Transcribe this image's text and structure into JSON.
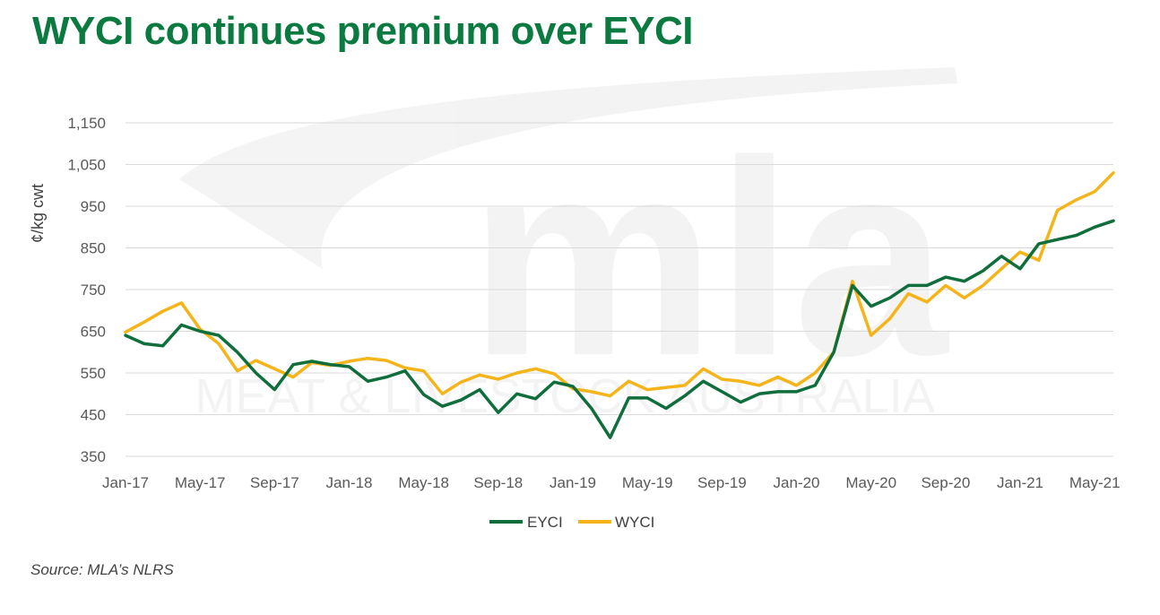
{
  "header": {
    "title": "WYCI continues premium over EYCI"
  },
  "footer": {
    "source": "Source: MLA’s NLRS"
  },
  "watermark": {
    "logo": "mla",
    "text": "MEAT & LIVESTOCK AUSTRALIA"
  },
  "colors": {
    "title": "#0b7a40",
    "eyci": "#0f6e3b",
    "wyci": "#f4b41a",
    "grid": "#d9d9d9"
  },
  "chart_data": {
    "type": "line",
    "title": "WYCI continues premium over EYCI",
    "xlabel": "",
    "ylabel": "¢/kg cwt",
    "ylim": [
      350,
      1150
    ],
    "yticks": [
      350,
      450,
      550,
      650,
      750,
      850,
      950,
      1050,
      1150
    ],
    "ytick_labels": [
      "350",
      "450",
      "550",
      "650",
      "750",
      "850",
      "950",
      "1,050",
      "1,150"
    ],
    "xlim": [
      "2017-01",
      "2021-06"
    ],
    "xticks": [
      "2017-01",
      "2017-05",
      "2017-09",
      "2018-01",
      "2018-05",
      "2018-09",
      "2019-01",
      "2019-05",
      "2019-09",
      "2020-01",
      "2020-05",
      "2020-09",
      "2021-01",
      "2021-05"
    ],
    "xtick_labels": [
      "Jan-17",
      "May-17",
      "Sep-17",
      "Jan-18",
      "May-18",
      "Sep-18",
      "Jan-19",
      "May-19",
      "Sep-19",
      "Jan-20",
      "May-20",
      "Sep-20",
      "Jan-21",
      "May-21"
    ],
    "grid": "horizontal",
    "legend": "bottom-center",
    "series": [
      {
        "name": "EYCI",
        "x": [
          "2017-01",
          "2017-02",
          "2017-03",
          "2017-04",
          "2017-05",
          "2017-06",
          "2017-07",
          "2017-08",
          "2017-09",
          "2017-10",
          "2017-11",
          "2017-12",
          "2018-01",
          "2018-02",
          "2018-03",
          "2018-04",
          "2018-05",
          "2018-06",
          "2018-07",
          "2018-08",
          "2018-09",
          "2018-10",
          "2018-11",
          "2018-12",
          "2019-01",
          "2019-02",
          "2019-03",
          "2019-04",
          "2019-05",
          "2019-06",
          "2019-07",
          "2019-08",
          "2019-09",
          "2019-10",
          "2019-11",
          "2019-12",
          "2020-01",
          "2020-02",
          "2020-03",
          "2020-04",
          "2020-05",
          "2020-06",
          "2020-07",
          "2020-08",
          "2020-09",
          "2020-10",
          "2020-11",
          "2020-12",
          "2021-01",
          "2021-02",
          "2021-03",
          "2021-04",
          "2021-05",
          "2021-06"
        ],
        "values": [
          640,
          620,
          615,
          665,
          650,
          640,
          600,
          550,
          510,
          570,
          578,
          570,
          565,
          530,
          540,
          555,
          498,
          470,
          485,
          510,
          455,
          500,
          488,
          528,
          518,
          465,
          395,
          490,
          490,
          465,
          495,
          530,
          505,
          480,
          500,
          505,
          505,
          520,
          600,
          760,
          710,
          730,
          760,
          760,
          780,
          770,
          795,
          830,
          800,
          860,
          870,
          880,
          900,
          915
        ]
      },
      {
        "name": "WYCI",
        "x": [
          "2017-01",
          "2017-02",
          "2017-03",
          "2017-04",
          "2017-05",
          "2017-06",
          "2017-07",
          "2017-08",
          "2017-09",
          "2017-10",
          "2017-11",
          "2017-12",
          "2018-01",
          "2018-02",
          "2018-03",
          "2018-04",
          "2018-05",
          "2018-06",
          "2018-07",
          "2018-08",
          "2018-09",
          "2018-10",
          "2018-11",
          "2018-12",
          "2019-01",
          "2019-02",
          "2019-03",
          "2019-04",
          "2019-05",
          "2019-06",
          "2019-07",
          "2019-08",
          "2019-09",
          "2019-10",
          "2019-11",
          "2019-12",
          "2020-01",
          "2020-02",
          "2020-03",
          "2020-04",
          "2020-05",
          "2020-06",
          "2020-07",
          "2020-08",
          "2020-09",
          "2020-10",
          "2020-11",
          "2020-12",
          "2021-01",
          "2021-02",
          "2021-03",
          "2021-04",
          "2021-05",
          "2021-06"
        ],
        "values": [
          648,
          672,
          698,
          718,
          655,
          620,
          555,
          580,
          560,
          540,
          575,
          568,
          578,
          585,
          580,
          562,
          555,
          500,
          528,
          545,
          535,
          550,
          560,
          548,
          512,
          505,
          495,
          530,
          510,
          515,
          520,
          560,
          535,
          530,
          520,
          540,
          520,
          550,
          600,
          770,
          640,
          680,
          740,
          720,
          760,
          730,
          760,
          800,
          840,
          820,
          940,
          965,
          985,
          1030
        ]
      }
    ]
  }
}
